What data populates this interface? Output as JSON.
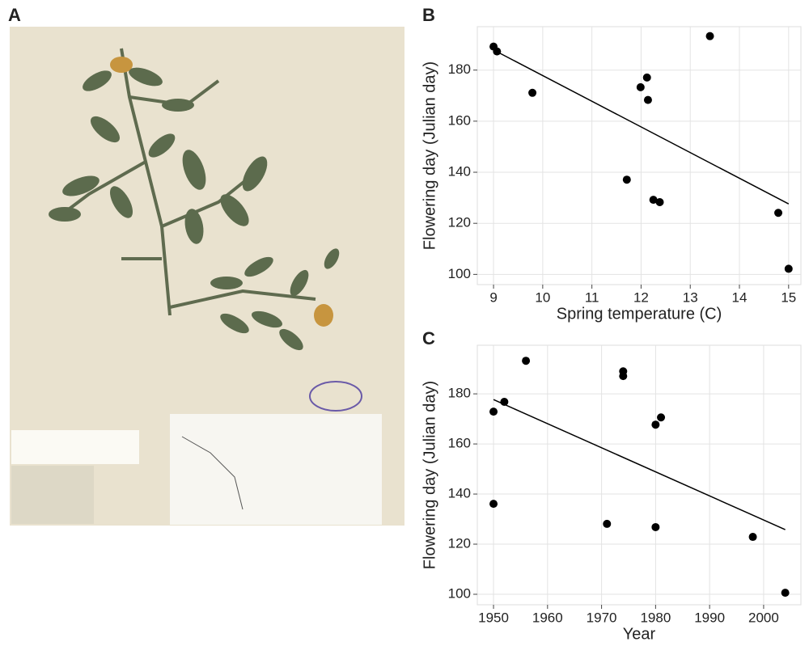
{
  "panels": {
    "a": "A"
  },
  "chart_data": [
    {
      "type": "scatter",
      "label": "B",
      "xlabel": "Spring temperature (C)",
      "ylabel": "Flowering day (Julian day)",
      "x": [
        9.0,
        9.07,
        9.79,
        11.99,
        12.12,
        12.14,
        11.71,
        12.25,
        12.38,
        13.4,
        14.79,
        15.0
      ],
      "values": [
        189.2,
        187.3,
        171.1,
        173.3,
        177.1,
        168.3,
        137.1,
        129.2,
        128.3,
        193.3,
        124.1,
        102.2
      ],
      "color": "#000000",
      "fit": {
        "x": [
          9,
          15
        ],
        "values": [
          187.9,
          127.6
        ],
        "color": "#000000"
      },
      "xlim": [
        8.67,
        15.25
      ],
      "ylim": [
        96,
        197
      ],
      "xticks": [
        9,
        10,
        11,
        12,
        13,
        14,
        15
      ],
      "yticks": [
        100,
        120,
        140,
        160,
        180
      ],
      "grid": true
    },
    {
      "type": "scatter",
      "label": "C",
      "xlabel": "Year",
      "ylabel": "Flowering day (Julian day)",
      "x": [
        1950,
        1952,
        1956,
        1950,
        1974,
        1974,
        1980,
        1981,
        1971,
        1980,
        1998,
        2004
      ],
      "values": [
        172.9,
        176.8,
        193.2,
        136.1,
        189,
        187.1,
        167.7,
        170.6,
        128.1,
        126.8,
        122.9,
        100.6
      ],
      "color": "#000000",
      "fit": {
        "x": [
          1950,
          2004
        ],
        "values": [
          177.7,
          125.8
        ],
        "color": "#000000"
      },
      "xlim": [
        1947,
        2006.9
      ],
      "ylim": [
        95.8,
        199.4
      ],
      "xticks": [
        1950,
        1960,
        1970,
        1980,
        1990,
        2000
      ],
      "yticks": [
        100,
        120,
        140,
        160,
        180
      ],
      "grid": true
    }
  ]
}
